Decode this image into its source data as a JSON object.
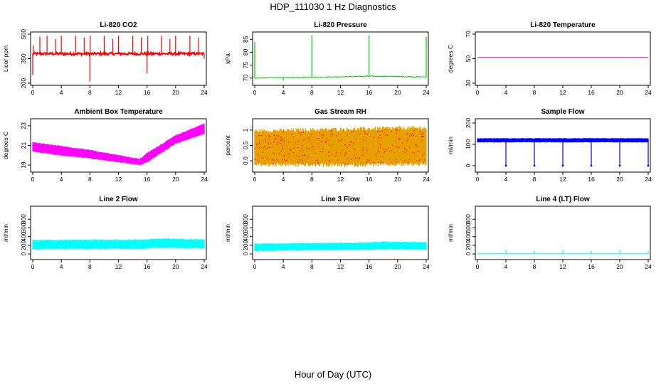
{
  "page": {
    "title": "HDP_111030  1 Hz Diagnostics",
    "xlabel": "Hour of Day (UTC)"
  },
  "chart_data": [
    {
      "type": "line",
      "title": "Li-820 CO2",
      "ylabel": "Licor ppm",
      "color": "#ff0000",
      "xlim": [
        0,
        24
      ],
      "ylim": [
        200,
        500
      ],
      "xticks": [
        0,
        4,
        8,
        12,
        16,
        20,
        24
      ],
      "yticks": [
        200,
        350,
        500
      ],
      "baseline": 380,
      "noise": 8,
      "spikes": [
        {
          "x": 0.0,
          "y": 250
        },
        {
          "x": 0.1,
          "y": 430
        },
        {
          "x": 1.0,
          "y": 485
        },
        {
          "x": 2.0,
          "y": 490
        },
        {
          "x": 3.2,
          "y": 470
        },
        {
          "x": 4.0,
          "y": 490
        },
        {
          "x": 6.0,
          "y": 490
        },
        {
          "x": 7.2,
          "y": 480
        },
        {
          "x": 8.0,
          "y": 210
        },
        {
          "x": 8.05,
          "y": 490
        },
        {
          "x": 10.0,
          "y": 490
        },
        {
          "x": 11.2,
          "y": 470
        },
        {
          "x": 12.0,
          "y": 490
        },
        {
          "x": 14.0,
          "y": 490
        },
        {
          "x": 15.2,
          "y": 480
        },
        {
          "x": 16.0,
          "y": 260
        },
        {
          "x": 16.1,
          "y": 490
        },
        {
          "x": 18.0,
          "y": 490
        },
        {
          "x": 19.2,
          "y": 470
        },
        {
          "x": 20.0,
          "y": 490
        },
        {
          "x": 22.0,
          "y": 490
        },
        {
          "x": 23.2,
          "y": 480
        },
        {
          "x": 24.0,
          "y": 350
        }
      ]
    },
    {
      "type": "line",
      "title": "Li-820 Pressure",
      "ylabel": "kPa",
      "color": "#00cc00",
      "xlim": [
        0,
        24
      ],
      "ylim": [
        68,
        87
      ],
      "xticks": [
        0,
        4,
        8,
        12,
        16,
        20,
        24
      ],
      "yticks": [
        70,
        75,
        80,
        85
      ],
      "points": [
        {
          "x": 0,
          "y": 70
        },
        {
          "x": 4,
          "y": 70.2
        },
        {
          "x": 8,
          "y": 70.3
        },
        {
          "x": 12,
          "y": 70.5
        },
        {
          "x": 16,
          "y": 70.7
        },
        {
          "x": 20,
          "y": 70.6
        },
        {
          "x": 24,
          "y": 70.4
        }
      ],
      "spikes": [
        {
          "x": 0.0,
          "y": 84
        },
        {
          "x": 4.0,
          "y": 69
        },
        {
          "x": 8.0,
          "y": 86.5
        },
        {
          "x": 16.0,
          "y": 86.5
        },
        {
          "x": 24.0,
          "y": 86
        }
      ]
    },
    {
      "type": "line",
      "title": "Li-820 Temperature",
      "ylabel": "degrees C",
      "color": "#cc00cc",
      "xlim": [
        0,
        24
      ],
      "ylim": [
        30,
        70
      ],
      "xticks": [
        0,
        4,
        8,
        12,
        16,
        20,
        24
      ],
      "yticks": [
        30,
        50,
        70
      ],
      "points": [
        {
          "x": 0,
          "y": 51
        },
        {
          "x": 24,
          "y": 51
        }
      ]
    },
    {
      "type": "area",
      "title": "Ambient Box Temperature",
      "ylabel": "degrees C",
      "color": "#ff00ff",
      "xlim": [
        0,
        24
      ],
      "ylim": [
        18.5,
        23.5
      ],
      "xticks": [
        0,
        4,
        8,
        12,
        16,
        20,
        24
      ],
      "yticks": [
        19,
        21,
        23
      ],
      "upper": [
        {
          "x": 0,
          "y": 21.3
        },
        {
          "x": 4,
          "y": 20.9
        },
        {
          "x": 8,
          "y": 20.5
        },
        {
          "x": 12,
          "y": 20.0
        },
        {
          "x": 15,
          "y": 19.6
        },
        {
          "x": 16,
          "y": 20.2
        },
        {
          "x": 20,
          "y": 22.0
        },
        {
          "x": 24,
          "y": 23.2
        }
      ],
      "lower": [
        {
          "x": 0,
          "y": 20.4
        },
        {
          "x": 4,
          "y": 20.0
        },
        {
          "x": 8,
          "y": 19.7
        },
        {
          "x": 12,
          "y": 19.3
        },
        {
          "x": 15,
          "y": 19.0
        },
        {
          "x": 16,
          "y": 19.3
        },
        {
          "x": 20,
          "y": 21.2
        },
        {
          "x": 24,
          "y": 22.2
        }
      ]
    },
    {
      "type": "area",
      "title": "Gas Stream RH",
      "ylabel": "percent",
      "color": "#e8a000",
      "dot_color": "#ff0000",
      "xlim": [
        0,
        24
      ],
      "ylim": [
        -0.3,
        1.3
      ],
      "xticks": [
        0,
        4,
        8,
        12,
        16,
        20,
        24
      ],
      "yticks": [
        0.0,
        0.5,
        1.0
      ],
      "upper": [
        {
          "x": 0,
          "y": 0.95
        },
        {
          "x": 12,
          "y": 1.0
        },
        {
          "x": 24,
          "y": 1.05
        }
      ],
      "lower": [
        {
          "x": 0,
          "y": -0.1
        },
        {
          "x": 12,
          "y": -0.12
        },
        {
          "x": 24,
          "y": -0.08
        }
      ]
    },
    {
      "type": "area",
      "title": "Sample Flow",
      "ylabel": "ml/min",
      "color": "#0000ff",
      "xlim": [
        0,
        24
      ],
      "ylim": [
        -20,
        210
      ],
      "xticks": [
        0,
        4,
        8,
        12,
        16,
        20,
        24
      ],
      "yticks": [
        0,
        100,
        200
      ],
      "upper": [
        {
          "x": 0,
          "y": 128
        },
        {
          "x": 24,
          "y": 128
        }
      ],
      "lower": [
        {
          "x": 0,
          "y": 110
        },
        {
          "x": 24,
          "y": 110
        }
      ],
      "spikes": [
        {
          "x": 4,
          "y": 0
        },
        {
          "x": 8,
          "y": 0
        },
        {
          "x": 12,
          "y": 0
        },
        {
          "x": 16,
          "y": 0
        },
        {
          "x": 20,
          "y": 0
        },
        {
          "x": 24,
          "y": 0
        }
      ]
    },
    {
      "type": "area",
      "title": "Line 2 Flow",
      "ylabel": "ml/min",
      "color": "#00ffff",
      "xlim": [
        0,
        24
      ],
      "ylim": [
        -80,
        1050
      ],
      "xticks": [
        0,
        4,
        8,
        12,
        16,
        20,
        24
      ],
      "yticks": [
        0,
        200,
        400,
        600,
        800
      ],
      "upper": [
        {
          "x": 0,
          "y": 310
        },
        {
          "x": 4,
          "y": 315
        },
        {
          "x": 8,
          "y": 320
        },
        {
          "x": 12,
          "y": 320
        },
        {
          "x": 16,
          "y": 325
        },
        {
          "x": 17,
          "y": 345
        },
        {
          "x": 20,
          "y": 345
        },
        {
          "x": 24,
          "y": 330
        }
      ],
      "lower": [
        {
          "x": 0,
          "y": 110
        },
        {
          "x": 4,
          "y": 120
        },
        {
          "x": 8,
          "y": 120
        },
        {
          "x": 12,
          "y": 120
        },
        {
          "x": 16,
          "y": 125
        },
        {
          "x": 17,
          "y": 145
        },
        {
          "x": 20,
          "y": 145
        },
        {
          "x": 24,
          "y": 130
        }
      ]
    },
    {
      "type": "area",
      "title": "Line 3 Flow",
      "ylabel": "ml/min",
      "color": "#00ffff",
      "xlim": [
        0,
        24
      ],
      "ylim": [
        -80,
        1050
      ],
      "xticks": [
        0,
        4,
        8,
        12,
        16,
        20,
        24
      ],
      "yticks": [
        0,
        200,
        400,
        600,
        800
      ],
      "upper": [
        {
          "x": 0,
          "y": 230
        },
        {
          "x": 4,
          "y": 240
        },
        {
          "x": 8,
          "y": 245
        },
        {
          "x": 12,
          "y": 250
        },
        {
          "x": 16,
          "y": 255
        },
        {
          "x": 17,
          "y": 275
        },
        {
          "x": 20,
          "y": 275
        },
        {
          "x": 24,
          "y": 265
        }
      ],
      "lower": [
        {
          "x": 0,
          "y": 70
        },
        {
          "x": 4,
          "y": 85
        },
        {
          "x": 8,
          "y": 90
        },
        {
          "x": 12,
          "y": 95
        },
        {
          "x": 16,
          "y": 100
        },
        {
          "x": 17,
          "y": 110
        },
        {
          "x": 20,
          "y": 110
        },
        {
          "x": 24,
          "y": 100
        }
      ]
    },
    {
      "type": "line",
      "title": "Line 4 (LT) Flow",
      "ylabel": "ml/min",
      "color": "#00ffff",
      "xlim": [
        0,
        24
      ],
      "ylim": [
        -80,
        1050
      ],
      "xticks": [
        0,
        4,
        8,
        12,
        16,
        20,
        24
      ],
      "yticks": [
        0,
        200,
        400,
        600,
        800
      ],
      "points": [
        {
          "x": 0,
          "y": 5
        },
        {
          "x": 24,
          "y": 5
        }
      ],
      "spikes": [
        {
          "x": 4,
          "y": 100
        },
        {
          "x": 8,
          "y": 80
        },
        {
          "x": 12,
          "y": 100
        },
        {
          "x": 16,
          "y": 70
        },
        {
          "x": 20,
          "y": 100
        },
        {
          "x": 24,
          "y": 70
        }
      ]
    }
  ]
}
